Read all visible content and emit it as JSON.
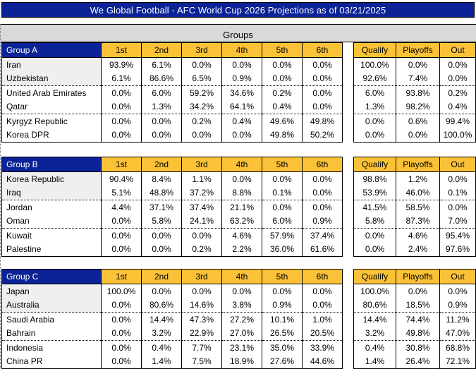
{
  "title_bar": {
    "text": "We Global Football - AFC World Cup 2026 Projections as of 03/21/2025"
  },
  "colors": {
    "title_blue": "#0B2396",
    "header_orange": "#FCC237",
    "band_gray": "#D9D9D9",
    "shaded_team_cell": "#EFEFEF"
  },
  "chart_data": {
    "type": "table",
    "title": "We Global Football - AFC World Cup 2026 Projections as of 03/21/2025",
    "section": "Groups",
    "position_columns": [
      "1st",
      "2nd",
      "3rd",
      "4th",
      "5th",
      "6th"
    ],
    "outcome_columns": [
      "Qualify",
      "Playoffs",
      "Out"
    ],
    "groups": [
      {
        "name": "Group A",
        "teams": [
          {
            "team": "Iran",
            "positions": [
              "93.9%",
              "6.1%",
              "0.0%",
              "0.0%",
              "0.0%",
              "0.0%"
            ],
            "outcomes": [
              "100.0%",
              "0.0%",
              "0.0%"
            ]
          },
          {
            "team": "Uzbekistan",
            "positions": [
              "6.1%",
              "86.6%",
              "6.5%",
              "0.9%",
              "0.0%",
              "0.0%"
            ],
            "outcomes": [
              "92.6%",
              "7.4%",
              "0.0%"
            ]
          },
          {
            "team": "United Arab Emirates",
            "positions": [
              "0.0%",
              "6.0%",
              "59.2%",
              "34.6%",
              "0.2%",
              "0.0%"
            ],
            "outcomes": [
              "6.0%",
              "93.8%",
              "0.2%"
            ]
          },
          {
            "team": "Qatar",
            "positions": [
              "0.0%",
              "1.3%",
              "34.2%",
              "64.1%",
              "0.4%",
              "0.0%"
            ],
            "outcomes": [
              "1.3%",
              "98.2%",
              "0.4%"
            ]
          },
          {
            "team": "Kyrgyz Republic",
            "positions": [
              "0.0%",
              "0.0%",
              "0.2%",
              "0.4%",
              "49.6%",
              "49.8%"
            ],
            "outcomes": [
              "0.0%",
              "0.6%",
              "99.4%"
            ]
          },
          {
            "team": "Korea DPR",
            "positions": [
              "0.0%",
              "0.0%",
              "0.0%",
              "0.0%",
              "49.8%",
              "50.2%"
            ],
            "outcomes": [
              "0.0%",
              "0.0%",
              "100.0%"
            ]
          }
        ]
      },
      {
        "name": "Group B",
        "teams": [
          {
            "team": "Korea Republic",
            "positions": [
              "90.4%",
              "8.4%",
              "1.1%",
              "0.0%",
              "0.0%",
              "0.0%"
            ],
            "outcomes": [
              "98.8%",
              "1.2%",
              "0.0%"
            ]
          },
          {
            "team": "Iraq",
            "positions": [
              "5.1%",
              "48.8%",
              "37.2%",
              "8.8%",
              "0.1%",
              "0.0%"
            ],
            "outcomes": [
              "53.9%",
              "46.0%",
              "0.1%"
            ]
          },
          {
            "team": "Jordan",
            "positions": [
              "4.4%",
              "37.1%",
              "37.4%",
              "21.1%",
              "0.0%",
              "0.0%"
            ],
            "outcomes": [
              "41.5%",
              "58.5%",
              "0.0%"
            ]
          },
          {
            "team": "Oman",
            "positions": [
              "0.0%",
              "5.8%",
              "24.1%",
              "63.2%",
              "6.0%",
              "0.9%"
            ],
            "outcomes": [
              "5.8%",
              "87.3%",
              "7.0%"
            ]
          },
          {
            "team": "Kuwait",
            "positions": [
              "0.0%",
              "0.0%",
              "0.0%",
              "4.6%",
              "57.9%",
              "37.4%"
            ],
            "outcomes": [
              "0.0%",
              "4.6%",
              "95.4%"
            ]
          },
          {
            "team": "Palestine",
            "positions": [
              "0.0%",
              "0.0%",
              "0.2%",
              "2.2%",
              "36.0%",
              "61.6%"
            ],
            "outcomes": [
              "0.0%",
              "2.4%",
              "97.6%"
            ]
          }
        ]
      },
      {
        "name": "Group C",
        "teams": [
          {
            "team": "Japan",
            "positions": [
              "100.0%",
              "0.0%",
              "0.0%",
              "0.0%",
              "0.0%",
              "0.0%"
            ],
            "outcomes": [
              "100.0%",
              "0.0%",
              "0.0%"
            ]
          },
          {
            "team": "Australia",
            "positions": [
              "0.0%",
              "80.6%",
              "14.6%",
              "3.8%",
              "0.9%",
              "0.0%"
            ],
            "outcomes": [
              "80.6%",
              "18.5%",
              "0.9%"
            ]
          },
          {
            "team": "Saudi Arabia",
            "positions": [
              "0.0%",
              "14.4%",
              "47.3%",
              "27.2%",
              "10.1%",
              "1.0%"
            ],
            "outcomes": [
              "14.4%",
              "74.4%",
              "11.2%"
            ]
          },
          {
            "team": "Bahrain",
            "positions": [
              "0.0%",
              "3.2%",
              "22.9%",
              "27.0%",
              "26.5%",
              "20.5%"
            ],
            "outcomes": [
              "3.2%",
              "49.8%",
              "47.0%"
            ]
          },
          {
            "team": "Indonesia",
            "positions": [
              "0.0%",
              "0.4%",
              "7.7%",
              "23.1%",
              "35.0%",
              "33.9%"
            ],
            "outcomes": [
              "0.4%",
              "30.8%",
              "68.8%"
            ]
          },
          {
            "team": "China PR",
            "positions": [
              "0.0%",
              "1.4%",
              "7.5%",
              "18.9%",
              "27.6%",
              "44.6%"
            ],
            "outcomes": [
              "1.4%",
              "26.4%",
              "72.1%"
            ]
          }
        ]
      }
    ]
  }
}
